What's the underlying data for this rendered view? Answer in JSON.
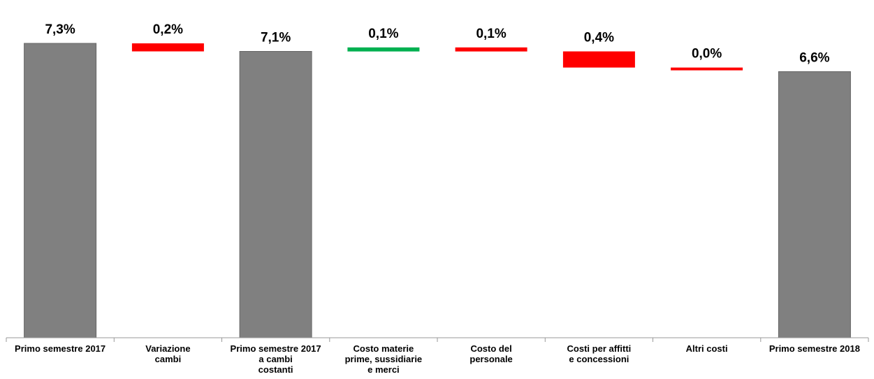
{
  "chart_data": {
    "type": "waterfall",
    "title": "",
    "xlabel": "",
    "ylabel": "",
    "ylim": [
      0,
      7.6
    ],
    "grid": false,
    "legend": "none",
    "categories": [
      [
        "Primo semestre 2017"
      ],
      [
        "Variazione",
        "cambi"
      ],
      [
        "Primo semestre 2017",
        "a cambi",
        "costanti"
      ],
      [
        "Costo materie",
        "prime, sussidiarie",
        "e merci"
      ],
      [
        "Costo del",
        "personale"
      ],
      [
        "Costi per affitti",
        "e concessioni"
      ],
      [
        "Altri costi"
      ],
      [
        "Primo semestre 2018"
      ]
    ],
    "bars": [
      {
        "kind": "total",
        "base": 0,
        "top": 7.3,
        "label": "7,3%"
      },
      {
        "kind": "decrease",
        "base": 7.1,
        "top": 7.3,
        "label": "0,2%"
      },
      {
        "kind": "total",
        "base": 0,
        "top": 7.1,
        "label": "7,1%"
      },
      {
        "kind": "increase",
        "base": 7.1,
        "top": 7.2,
        "label": "0,1%"
      },
      {
        "kind": "decrease",
        "base": 7.1,
        "top": 7.2,
        "label": "0,1%"
      },
      {
        "kind": "decrease",
        "base": 6.7,
        "top": 7.1,
        "label": "0,4%"
      },
      {
        "kind": "decrease",
        "base": 6.68,
        "top": 6.7,
        "label": "0,0%"
      },
      {
        "kind": "total",
        "base": 0,
        "top": 6.6,
        "label": "6,6%"
      }
    ],
    "colors": {
      "total": "#808080",
      "increase": "#00b050",
      "decrease": "#ff0000",
      "axis": "#999999"
    }
  }
}
